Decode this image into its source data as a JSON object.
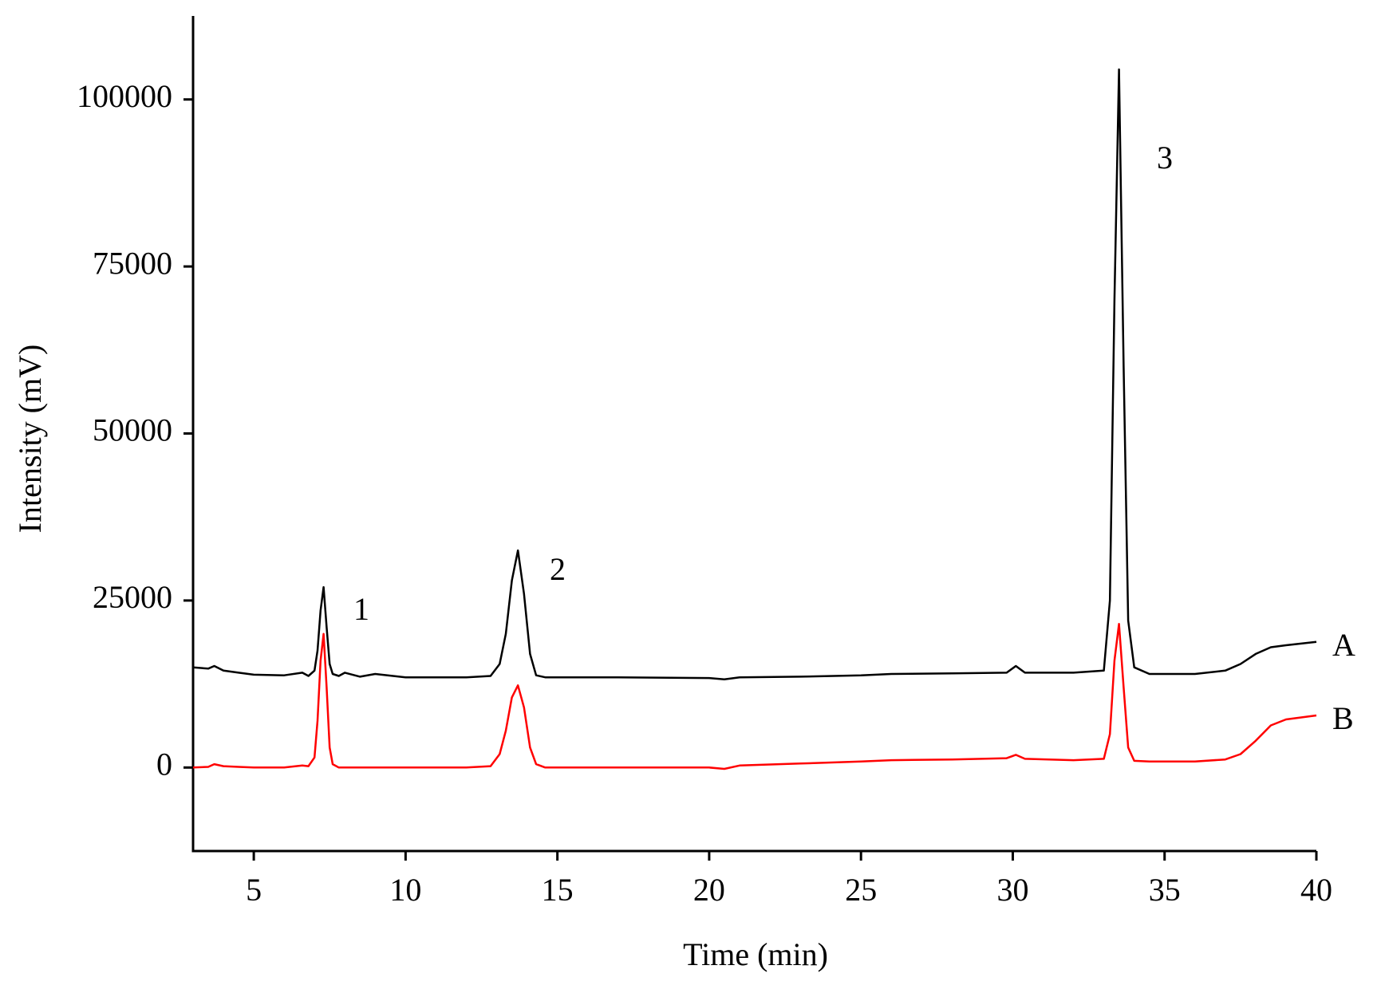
{
  "chart_data": {
    "type": "line",
    "x_label": "Time (min)",
    "y_label": "Intensity (mV)",
    "xlim": [
      3,
      40
    ],
    "xticks": [
      5,
      10,
      15,
      20,
      25,
      30,
      35,
      40
    ],
    "ylim": [
      -12500,
      112500
    ],
    "yticks": [
      0,
      25000,
      50000,
      75000,
      100000
    ],
    "annotations": [
      "1",
      "2",
      "3"
    ],
    "x": [
      3,
      3.5,
      3.7,
      4,
      4.5,
      5,
      6,
      6.6,
      6.8,
      7.0,
      7.1,
      7.2,
      7.3,
      7.4,
      7.5,
      7.6,
      7.8,
      8,
      8.5,
      9,
      10,
      11,
      12,
      12.8,
      13.1,
      13.3,
      13.5,
      13.7,
      13.9,
      14.1,
      14.3,
      14.6,
      15,
      17,
      20,
      20.5,
      21,
      23,
      25,
      26,
      28,
      29.8,
      30.1,
      30.4,
      32,
      33.0,
      33.2,
      33.35,
      33.5,
      33.65,
      33.8,
      34.0,
      34.5,
      36,
      37,
      37.5,
      38,
      38.5,
      39,
      40
    ],
    "series": [
      {
        "name": "A",
        "color": "#000000",
        "values": [
          15000,
          14800,
          15200,
          14500,
          14200,
          13900,
          13800,
          14200,
          13700,
          14500,
          17500,
          23500,
          27000,
          21000,
          15500,
          14000,
          13700,
          14200,
          13600,
          14000,
          13500,
          13500,
          13500,
          13700,
          15500,
          20000,
          28000,
          32500,
          26000,
          17000,
          13800,
          13500,
          13500,
          13500,
          13400,
          13200,
          13500,
          13600,
          13800,
          14000,
          14100,
          14200,
          15200,
          14200,
          14200,
          14500,
          25000,
          70000,
          104500,
          60000,
          22000,
          15000,
          14000,
          14000,
          14500,
          15500,
          17000,
          18000,
          18300,
          18800
        ]
      },
      {
        "name": "B",
        "color": "#ff0000",
        "values": [
          0,
          100,
          500,
          200,
          100,
          0,
          0,
          300,
          200,
          1500,
          7000,
          16000,
          20000,
          12000,
          3000,
          500,
          0,
          0,
          0,
          0,
          0,
          0,
          0,
          200,
          2000,
          5500,
          10500,
          12300,
          9000,
          3000,
          500,
          0,
          0,
          0,
          0,
          -200,
          300,
          600,
          900,
          1100,
          1200,
          1400,
          1900,
          1300,
          1100,
          1300,
          5000,
          16000,
          21500,
          12000,
          3000,
          1000,
          900,
          900,
          1200,
          2000,
          4000,
          6300,
          7200,
          7800
        ]
      }
    ]
  }
}
